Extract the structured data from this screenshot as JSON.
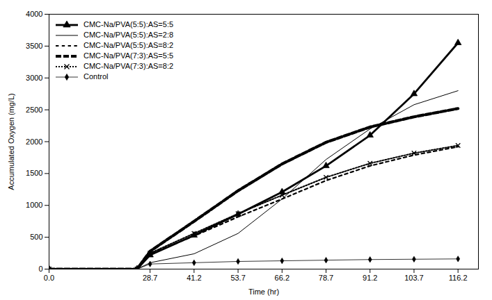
{
  "chart_data": {
    "type": "line",
    "xlabel": "Time (hr)",
    "ylabel": "Accumulated Oxygen (mg/L)",
    "xlim": [
      0.0,
      122.0
    ],
    "ylim": [
      0,
      4000
    ],
    "xticks": [
      {
        "value": 0,
        "label": "0.0"
      },
      28.7,
      41.2,
      53.7,
      66.2,
      78.7,
      91.2,
      103.7,
      116.2
    ],
    "yticks": [
      0,
      500,
      1000,
      1500,
      2000,
      2500,
      3000,
      3500,
      4000
    ],
    "x": [
      0,
      25,
      28.7,
      41.2,
      53.7,
      66.2,
      78.7,
      91.2,
      103.7,
      116.2
    ],
    "series": [
      {
        "name": "CMC-Na/PVA(5:5):AS=5:5",
        "color": "#000000",
        "line_style": "solid",
        "marker": "triangle",
        "values": [
          0,
          0,
          220,
          530,
          860,
          1210,
          1620,
          2100,
          2750,
          3550
        ]
      },
      {
        "name": "CMC-Na/PVA(5:5):AS=2:8",
        "color": "#000000",
        "line_style": "solid",
        "values": [
          0,
          0,
          100,
          240,
          560,
          1100,
          1720,
          2200,
          2580,
          2800
        ]
      },
      {
        "name": "CMC-Na/PVA(5:5):AS=8:2",
        "color": "#000000",
        "line_style": "dotted",
        "values": [
          0,
          0,
          240,
          520,
          820,
          1100,
          1390,
          1620,
          1790,
          1920
        ]
      },
      {
        "name": "CMC-Na/PVA(7:3):AS=5:5",
        "color": "#000000",
        "line_style": "double_dash",
        "values": [
          0,
          0,
          280,
          750,
          1230,
          1650,
          1990,
          2230,
          2390,
          2520
        ]
      },
      {
        "name": "CMC-Na/PVA(7:3):AS=8:2",
        "color": "#000000",
        "line_style": "dotted_dense",
        "marker": "x",
        "values": [
          0,
          0,
          250,
          560,
          870,
          1160,
          1440,
          1660,
          1820,
          1940
        ]
      },
      {
        "name": "Control",
        "color": "#000000",
        "line_style": "solid",
        "marker": "diamond",
        "values": [
          0,
          0,
          80,
          100,
          120,
          130,
          140,
          150,
          155,
          160
        ]
      }
    ],
    "grid": false,
    "legend": "upper left"
  }
}
